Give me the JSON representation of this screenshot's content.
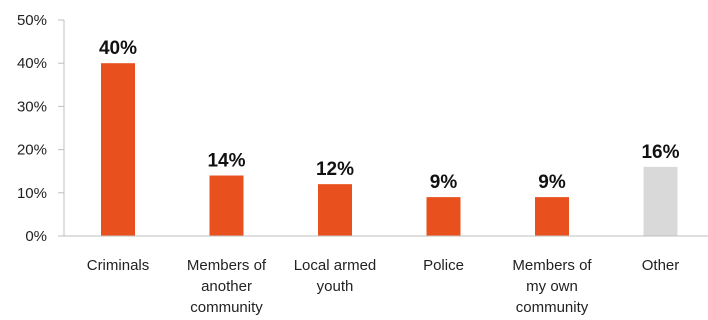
{
  "chart_data": {
    "type": "bar",
    "categories": [
      [
        "Criminals"
      ],
      [
        "Members of",
        "another",
        "community"
      ],
      [
        "Local armed",
        "youth"
      ],
      [
        "Police"
      ],
      [
        "Members of",
        "my own",
        "community"
      ],
      [
        "Other"
      ]
    ],
    "values": [
      40,
      14,
      12,
      9,
      9,
      16
    ],
    "data_labels": [
      "40%",
      "14%",
      "12%",
      "9%",
      "9%",
      "16%"
    ],
    "y_ticks": [
      0,
      10,
      20,
      30,
      40,
      50
    ],
    "y_tick_labels": [
      "0%",
      "10%",
      "20%",
      "30%",
      "40%",
      "50%"
    ],
    "ylim": [
      0,
      50
    ],
    "grid": false,
    "colors": [
      "#e8501e",
      "#e8501e",
      "#e8501e",
      "#e8501e",
      "#e8501e",
      "#d9d9d9"
    ],
    "axis_color": "#bfbfbf"
  }
}
